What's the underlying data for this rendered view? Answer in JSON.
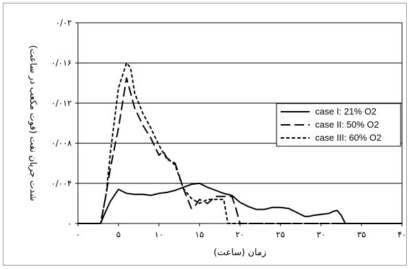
{
  "chart_data": {
    "type": "line",
    "xlabel": "زمان (ساعت)",
    "ylabel": "شدت جریان نفت (فوت مکعب در ساعت)",
    "xlim": [
      0,
      40
    ],
    "ylim": [
      0,
      0.02
    ],
    "x_ticks": [
      0,
      5,
      10,
      15,
      20,
      25,
      30,
      35,
      40
    ],
    "x_tick_labels": [
      "۰",
      "۵",
      "۱۰",
      "۱۵",
      "۲۰",
      "۲۵",
      "۳۰",
      "۳۵",
      "۴۰"
    ],
    "y_ticks": [
      0,
      0.004,
      0.008,
      0.012,
      0.016,
      0.02
    ],
    "y_tick_labels": [
      "۰",
      "۰/۰۰۴",
      "۰/۰۰۸",
      "۰/۰۱۲",
      "۰/۰۱۶",
      "۰/۰۲"
    ],
    "grid": {
      "horizontal": true,
      "vertical": false
    },
    "legend_position": "right",
    "series": [
      {
        "name": "case I: 21% O2",
        "style": "solid",
        "color": "#000000",
        "x": [
          0,
          2.8,
          3.2,
          4,
          5,
          5.5,
          6,
          7,
          8,
          9,
          10,
          11,
          12,
          13,
          14,
          15,
          16,
          17,
          18,
          19,
          20,
          21,
          22,
          23,
          24,
          25,
          26,
          27,
          28,
          28.5,
          29,
          30,
          31,
          31.5,
          32,
          32.5,
          33,
          40
        ],
        "y": [
          0,
          0,
          0.0008,
          0.0022,
          0.0034,
          0.0032,
          0.003,
          0.0029,
          0.0029,
          0.0028,
          0.003,
          0.0031,
          0.0033,
          0.0036,
          0.0039,
          0.004,
          0.0036,
          0.0033,
          0.003,
          0.0028,
          0.0021,
          0.0017,
          0.0014,
          0.0014,
          0.0016,
          0.0016,
          0.0015,
          0.0011,
          0.0007,
          0.0007,
          0.0008,
          0.0009,
          0.001,
          0.0012,
          0.0013,
          0.0008,
          0,
          0
        ]
      },
      {
        "name": "case II: 50% O2",
        "style": "dashed",
        "color": "#000000",
        "x": [
          0,
          2.8,
          3.5,
          4,
          5,
          6,
          7,
          8,
          9,
          10,
          10.5,
          11,
          12,
          13,
          14,
          14.5,
          15,
          16,
          17,
          18,
          19,
          19.5,
          20,
          40
        ],
        "y": [
          0,
          0,
          0.003,
          0.0055,
          0.0095,
          0.0145,
          0.0115,
          0.0098,
          0.0085,
          0.0068,
          0.0072,
          0.0065,
          0.006,
          0.0035,
          0.0015,
          0.0018,
          0.0024,
          0.002,
          0.0027,
          0.0027,
          0.0027,
          0.0015,
          0,
          0
        ]
      },
      {
        "name": "case III: 60% O2",
        "style": "dotted",
        "color": "#000000",
        "x": [
          0,
          2.8,
          3.5,
          4,
          5,
          6,
          6.5,
          7,
          8,
          9,
          10,
          11,
          11.5,
          12,
          13,
          14,
          15,
          16,
          17,
          18,
          18.5,
          19,
          40
        ],
        "y": [
          0,
          0,
          0.003,
          0.007,
          0.0135,
          0.016,
          0.0155,
          0.013,
          0.011,
          0.0095,
          0.0078,
          0.0064,
          0.0062,
          0.0058,
          0.0035,
          0.0025,
          0.002,
          0.0024,
          0.0024,
          0.0024,
          0,
          0,
          0
        ]
      }
    ]
  }
}
